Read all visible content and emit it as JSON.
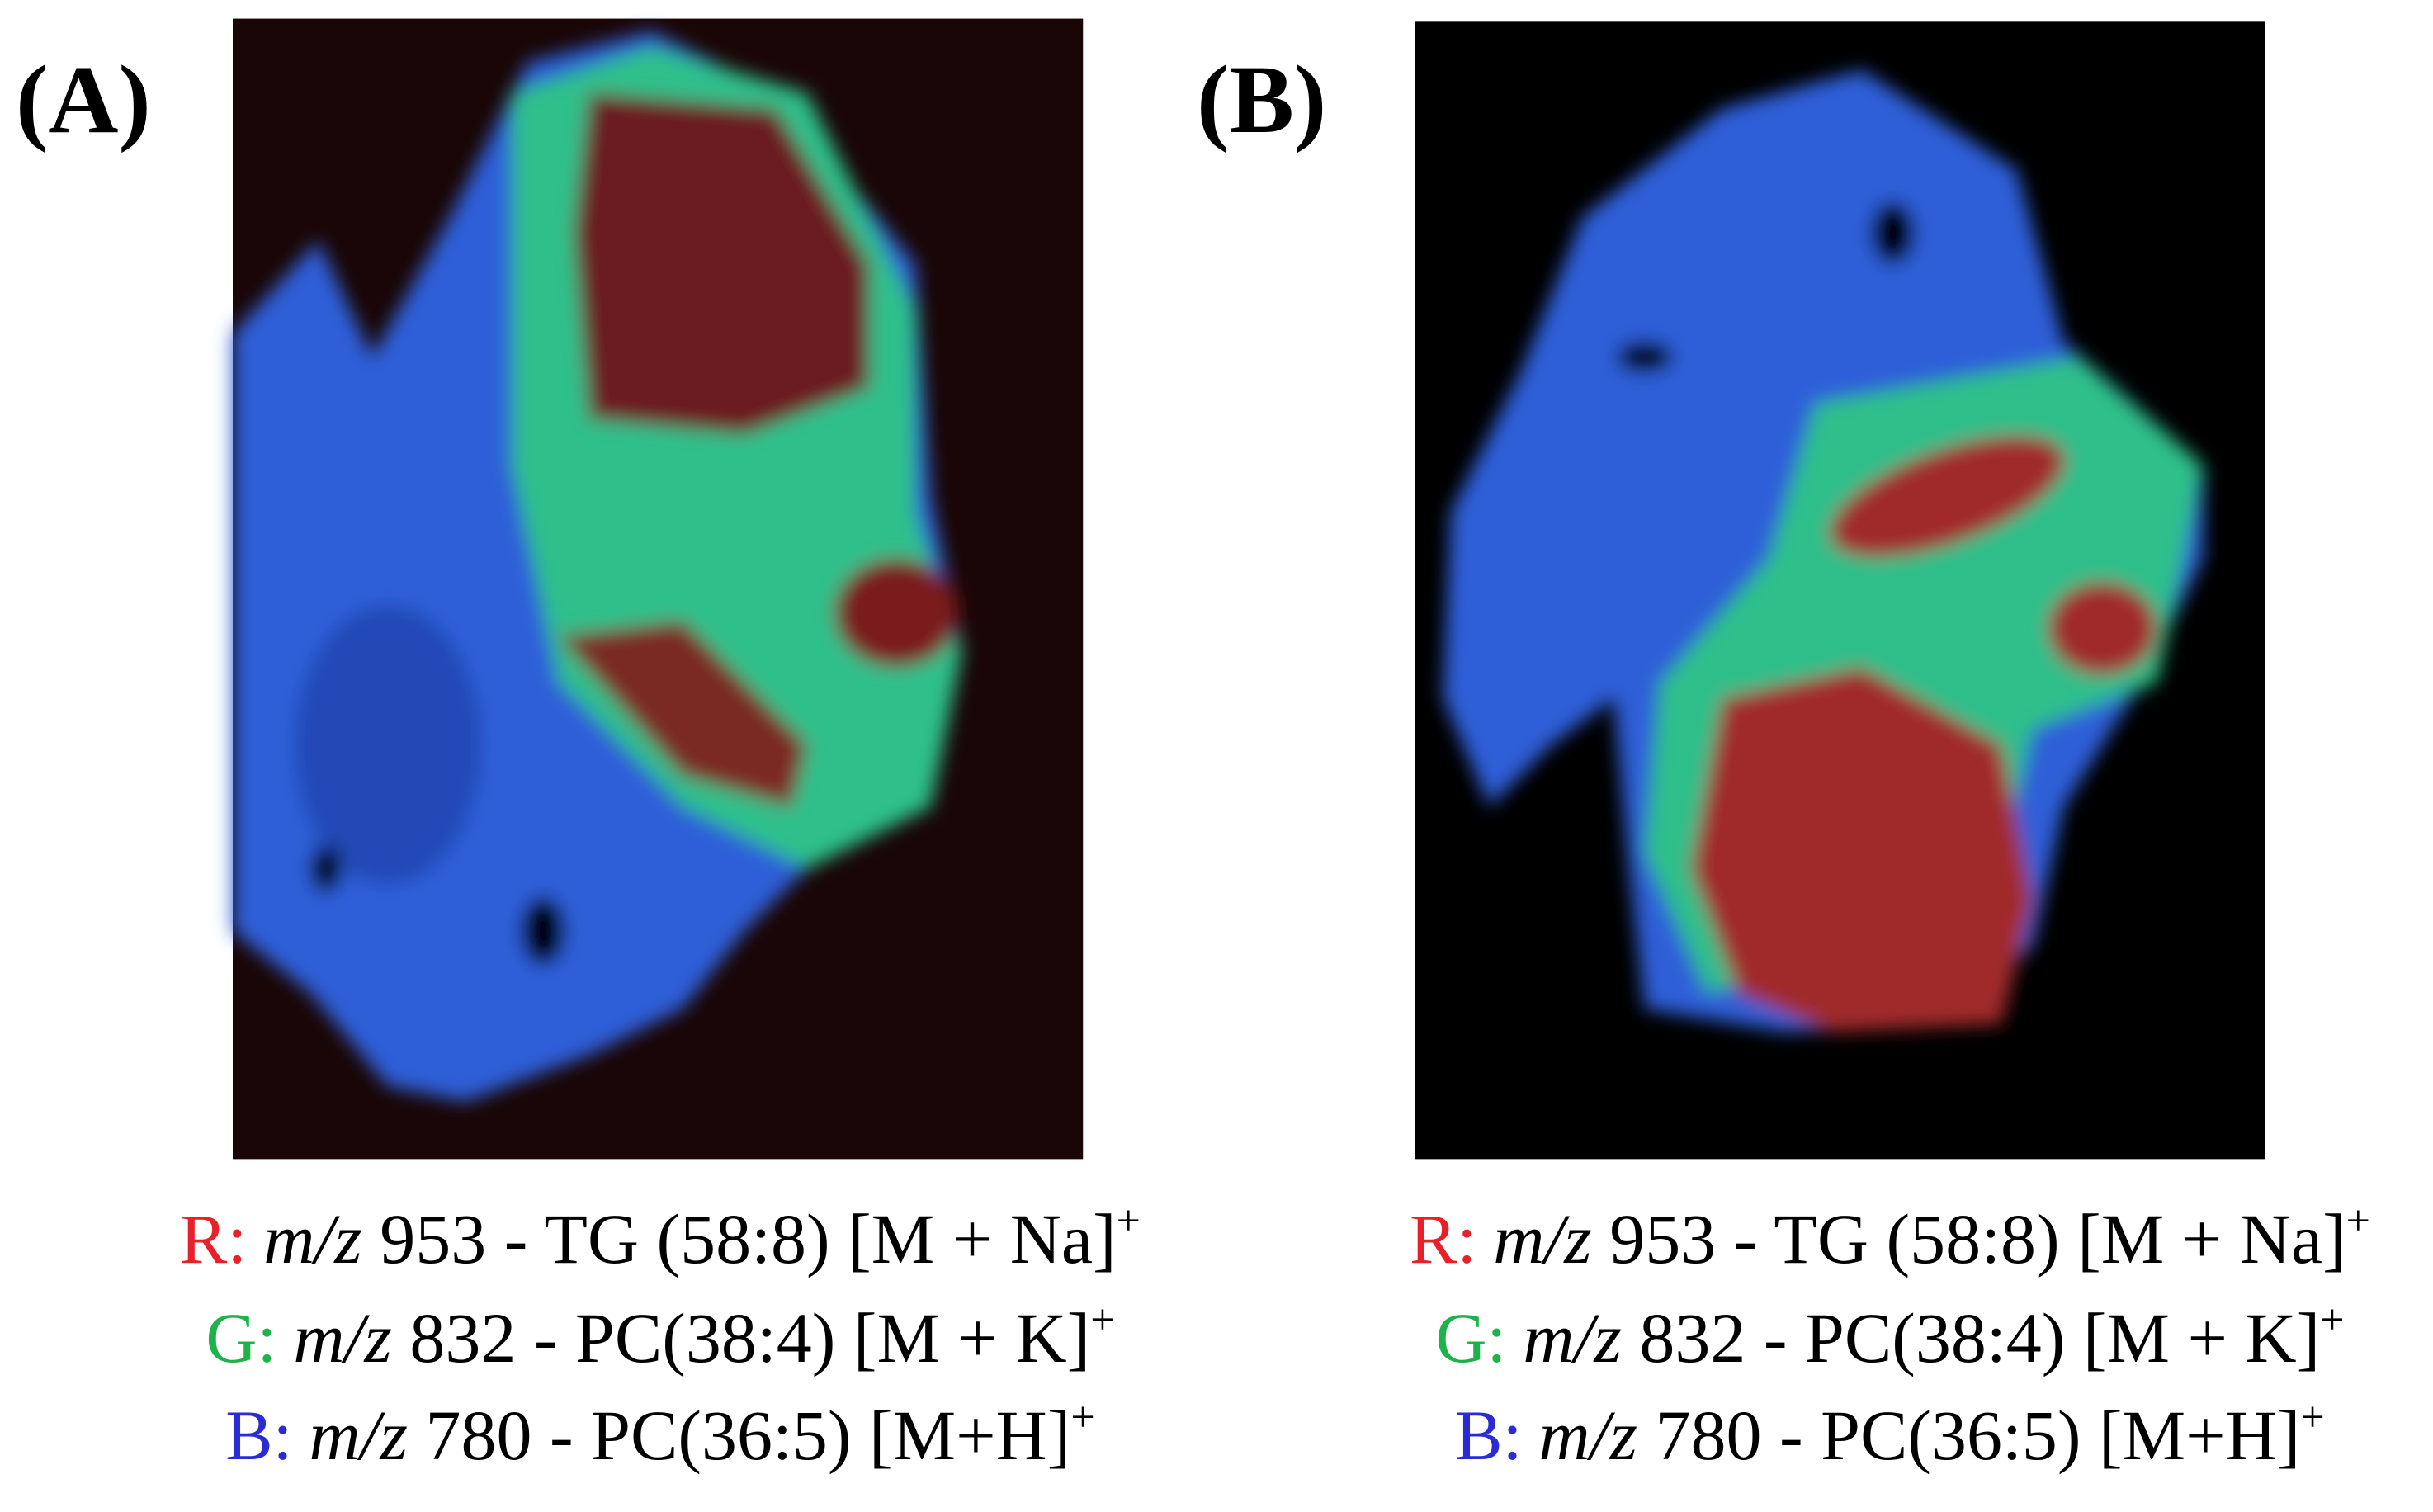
{
  "panels": [
    {
      "label": "(A)",
      "legend": [
        {
          "channel": "R:",
          "mz": "m/z",
          "text": " 953 - TG (58:8) [M + Na]",
          "sup": "+"
        },
        {
          "channel": "G:",
          "mz": "m/z",
          "text": " 832 - PC(38:4) [M + K]",
          "sup": "+"
        },
        {
          "channel": "B:",
          "mz": "m/z",
          "text": " 780 - PC(36:5) [M+H]",
          "sup": "+"
        }
      ]
    },
    {
      "label": "(B)",
      "legend": [
        {
          "channel": "R:",
          "mz": "m/z",
          "text": " 953 - TG (58:8) [M + Na]",
          "sup": "+"
        },
        {
          "channel": "G:",
          "mz": "m/z",
          "text": " 832 - PC(38:4) [M + K]",
          "sup": "+"
        },
        {
          "channel": "B:",
          "mz": "m/z",
          "text": " 780 - PC(36:5) [M+H]",
          "sup": "+"
        }
      ]
    }
  ]
}
